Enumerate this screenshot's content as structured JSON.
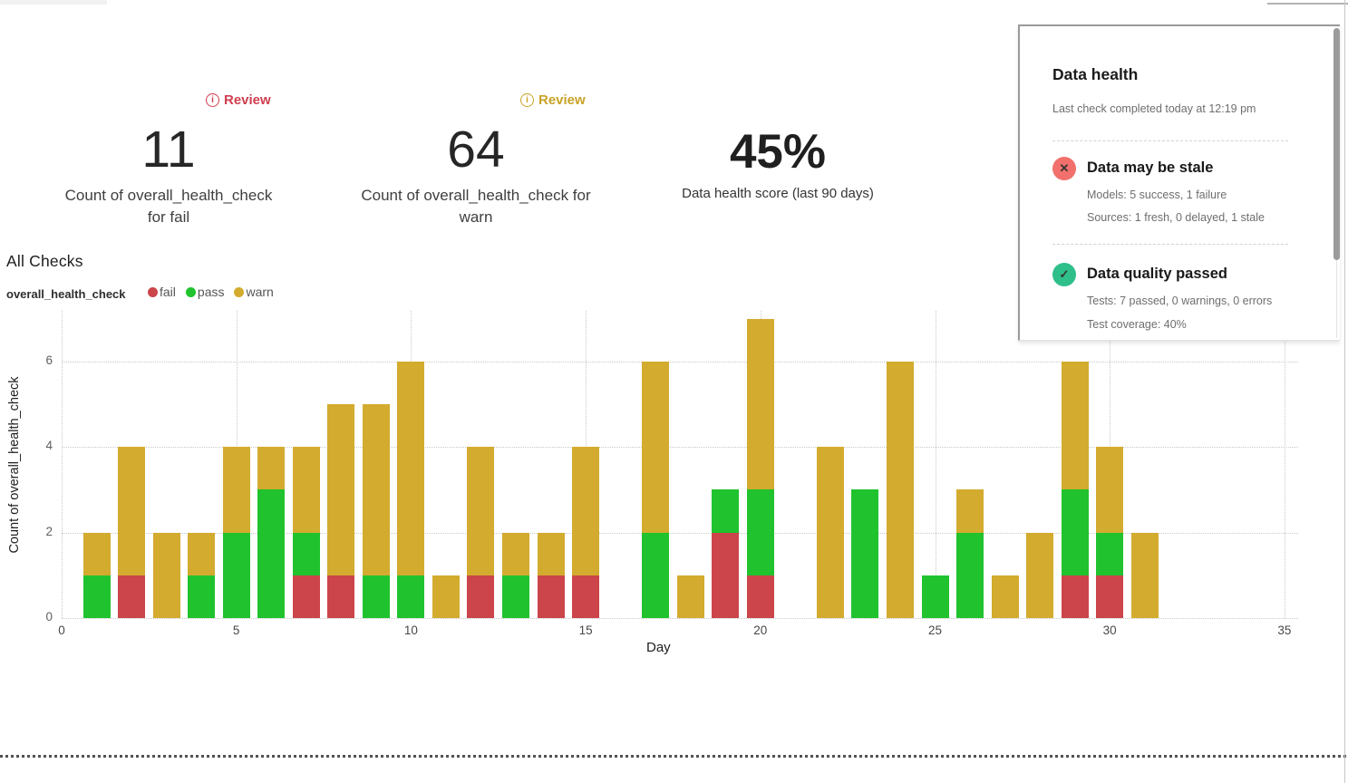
{
  "metrics": {
    "fail": {
      "badge": "Review",
      "accent": "#cf3e4e",
      "value": "11",
      "label": "Count of overall_health_check for fail"
    },
    "warn": {
      "badge": "Review",
      "accent": "#c9a227",
      "value": "64",
      "label": "Count of overall_health_check for warn"
    },
    "score": {
      "value": "45%",
      "label": "Data health score (last 90 days)"
    }
  },
  "health_panel": {
    "title": "Data health",
    "subtitle": "Last check completed today at 12:19 pm",
    "items": [
      {
        "status": "fail",
        "icon_color": "#f2706c",
        "icon_glyph": "✕",
        "title": "Data may be stale",
        "details": [
          "Models: 5 success, 1 failure",
          "Sources: 1 fresh, 0 delayed, 1 stale"
        ]
      },
      {
        "status": "pass",
        "icon_color": "#2fbf8a",
        "icon_glyph": "✓",
        "title": "Data quality passed",
        "details": [
          "Tests: 7 passed, 0 warnings, 0 errors",
          "Test coverage: 40%"
        ]
      }
    ]
  },
  "section": {
    "title": "All Checks",
    "legend_group": "overall_health_check"
  },
  "chart_data": {
    "type": "bar",
    "stacked": true,
    "title": "All Checks",
    "xlabel": "Day",
    "ylabel": "Count of overall_health_check",
    "xticks": [
      0,
      5,
      10,
      15,
      20,
      25,
      30,
      35
    ],
    "yticks": [
      0,
      2,
      4,
      6
    ],
    "xlim": [
      0,
      36
    ],
    "ylim": [
      0,
      7.2
    ],
    "grid": "dotted",
    "legend_position": "top-left",
    "legend": [
      "fail",
      "pass",
      "warn"
    ],
    "colors": {
      "fail": "#cb454b",
      "pass": "#20c32e",
      "warn": "#d3ab2e"
    },
    "x": [
      1,
      2,
      3,
      4,
      5,
      6,
      7,
      8,
      9,
      10,
      11,
      12,
      13,
      14,
      15,
      16,
      17,
      18,
      19,
      20,
      21,
      22,
      23,
      24,
      25,
      26,
      27,
      28,
      29,
      30,
      31
    ],
    "series": [
      {
        "name": "fail",
        "values": [
          0,
          1,
          0,
          0,
          0,
          0,
          1,
          1,
          0,
          0,
          0,
          1,
          0,
          1,
          1,
          0,
          0,
          0,
          2,
          1,
          0,
          0,
          0,
          0,
          0,
          0,
          0,
          0,
          1,
          1,
          0
        ]
      },
      {
        "name": "pass",
        "values": [
          1,
          0,
          0,
          1,
          2,
          3,
          1,
          0,
          1,
          1,
          0,
          0,
          1,
          0,
          0,
          0,
          2,
          0,
          1,
          2,
          0,
          0,
          3,
          0,
          1,
          2,
          0,
          0,
          2,
          1,
          0
        ]
      },
      {
        "name": "warn",
        "values": [
          1,
          3,
          2,
          1,
          2,
          1,
          2,
          4,
          4,
          5,
          1,
          3,
          1,
          1,
          3,
          0,
          4,
          1,
          0,
          4,
          0,
          4,
          0,
          6,
          0,
          1,
          1,
          2,
          3,
          2,
          2
        ]
      }
    ],
    "series_totals": {
      "fail": 11,
      "pass": 25,
      "warn": 64
    }
  }
}
